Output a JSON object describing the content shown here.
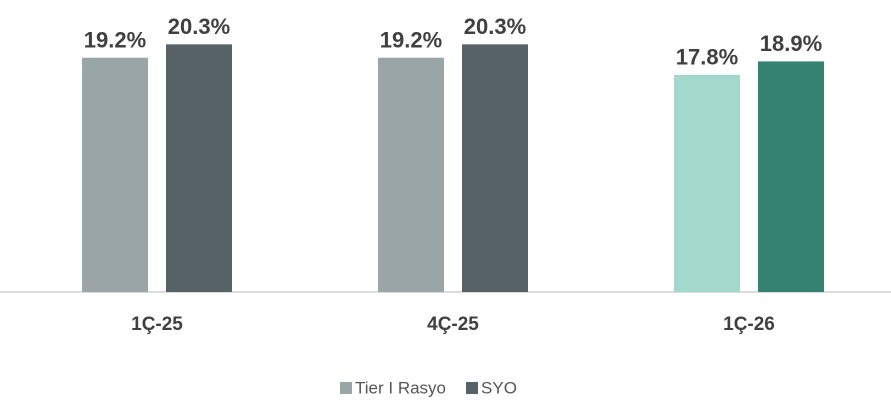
{
  "chart_data": {
    "type": "bar",
    "categories": [
      "1Ç-25",
      "4Ç-25",
      "1Ç-26"
    ],
    "series": [
      {
        "name": "Tier I Rasyo",
        "color": "#9aa5a8",
        "point_colors": [
          "#9aa5a8",
          "#9aa5a8",
          "#a2d9cc"
        ],
        "values": [
          19.2,
          19.2,
          17.8
        ],
        "value_labels": [
          "19.2%",
          "19.2%",
          "17.8%"
        ]
      },
      {
        "name": "SYO",
        "color": "#566266",
        "point_colors": [
          "#566266",
          "#566266",
          "#358272"
        ],
        "values": [
          20.3,
          20.3,
          18.9
        ],
        "value_labels": [
          "20.3%",
          "20.3%",
          "18.9%"
        ]
      }
    ],
    "legend": "bottom"
  }
}
